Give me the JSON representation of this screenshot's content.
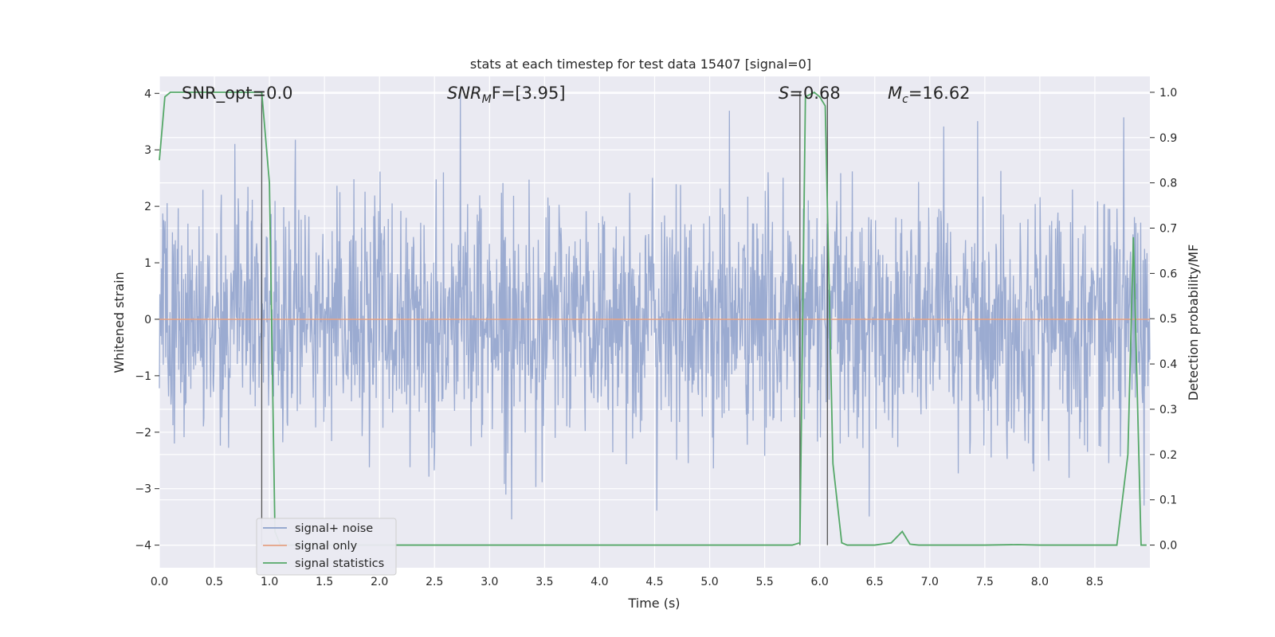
{
  "chart_data": {
    "type": "line",
    "title": "stats at each timestep for test data 15407 [signal=0]",
    "xlabel": "Time (s)",
    "ylabel": "Whitened strain",
    "ylabel_right": "Detection probability/MF",
    "xlim": [
      0.0,
      9.0
    ],
    "ylim": [
      -4.4,
      4.3
    ],
    "ylim_right": [
      -0.05,
      1.035
    ],
    "x_ticks": [
      "0.0",
      "0.5",
      "1.0",
      "1.5",
      "2.0",
      "2.5",
      "3.0",
      "3.5",
      "4.0",
      "4.5",
      "5.0",
      "5.5",
      "6.0",
      "6.5",
      "7.0",
      "7.5",
      "8.0",
      "8.5"
    ],
    "y_ticks": [
      "4",
      "3",
      "2",
      "1",
      "0",
      "−1",
      "−2",
      "−3",
      "−4"
    ],
    "y_ticks_right": [
      "1.0",
      "0.9",
      "0.8",
      "0.7",
      "0.6",
      "0.5",
      "0.4",
      "0.3",
      "0.2",
      "0.1",
      "0.0"
    ],
    "grid": true,
    "legend_position": "lower-left",
    "annotations": {
      "snr_opt": "SNR_opt=0.0",
      "snr_mf": "SNR_MF=[3.95]",
      "stat": "S=0.68",
      "chirp_mass": "M_c=16.62"
    },
    "vertical_lines_x": [
      0.93,
      5.82,
      6.07
    ],
    "series": [
      {
        "name": "signal+ noise",
        "color": "#8da0cb",
        "description": "whitened noise strain, roughly within ±2.5, peaks to ±4",
        "samples": 2048,
        "approx_max_abs": 4.0
      },
      {
        "name": "signal only",
        "color": "#e5a183",
        "x": [
          0.0,
          9.0
        ],
        "y": [
          0.0,
          0.0
        ]
      },
      {
        "name": "signal statistics",
        "color": "#55a868",
        "axis": "right",
        "x": [
          0.0,
          0.05,
          0.1,
          0.2,
          0.3,
          0.4,
          0.5,
          0.6,
          0.7,
          0.8,
          0.9,
          0.93,
          1.0,
          1.05,
          1.1,
          1.2,
          1.5,
          2.0,
          3.0,
          4.0,
          5.0,
          5.5,
          5.75,
          5.82,
          5.87,
          5.95,
          6.0,
          6.05,
          6.12,
          6.2,
          6.25,
          6.5,
          6.65,
          6.75,
          6.82,
          6.9,
          7.5,
          7.8,
          8.0,
          8.5,
          8.7,
          8.8,
          8.85,
          8.92,
          8.97
        ],
        "y": [
          0.85,
          0.99,
          1.0,
          1.0,
          1.0,
          1.0,
          1.0,
          1.0,
          1.0,
          1.0,
          1.0,
          1.0,
          0.8,
          0.03,
          0.0,
          0.0,
          0.0,
          0.0,
          0.0,
          0.0,
          0.0,
          0.0,
          0.0,
          0.005,
          0.99,
          1.0,
          0.99,
          0.97,
          0.18,
          0.005,
          0.0,
          0.0,
          0.005,
          0.03,
          0.002,
          0.0,
          0.0,
          0.001,
          0.0,
          0.0,
          0.0,
          0.2,
          0.68,
          0.0,
          0.0
        ]
      }
    ]
  }
}
